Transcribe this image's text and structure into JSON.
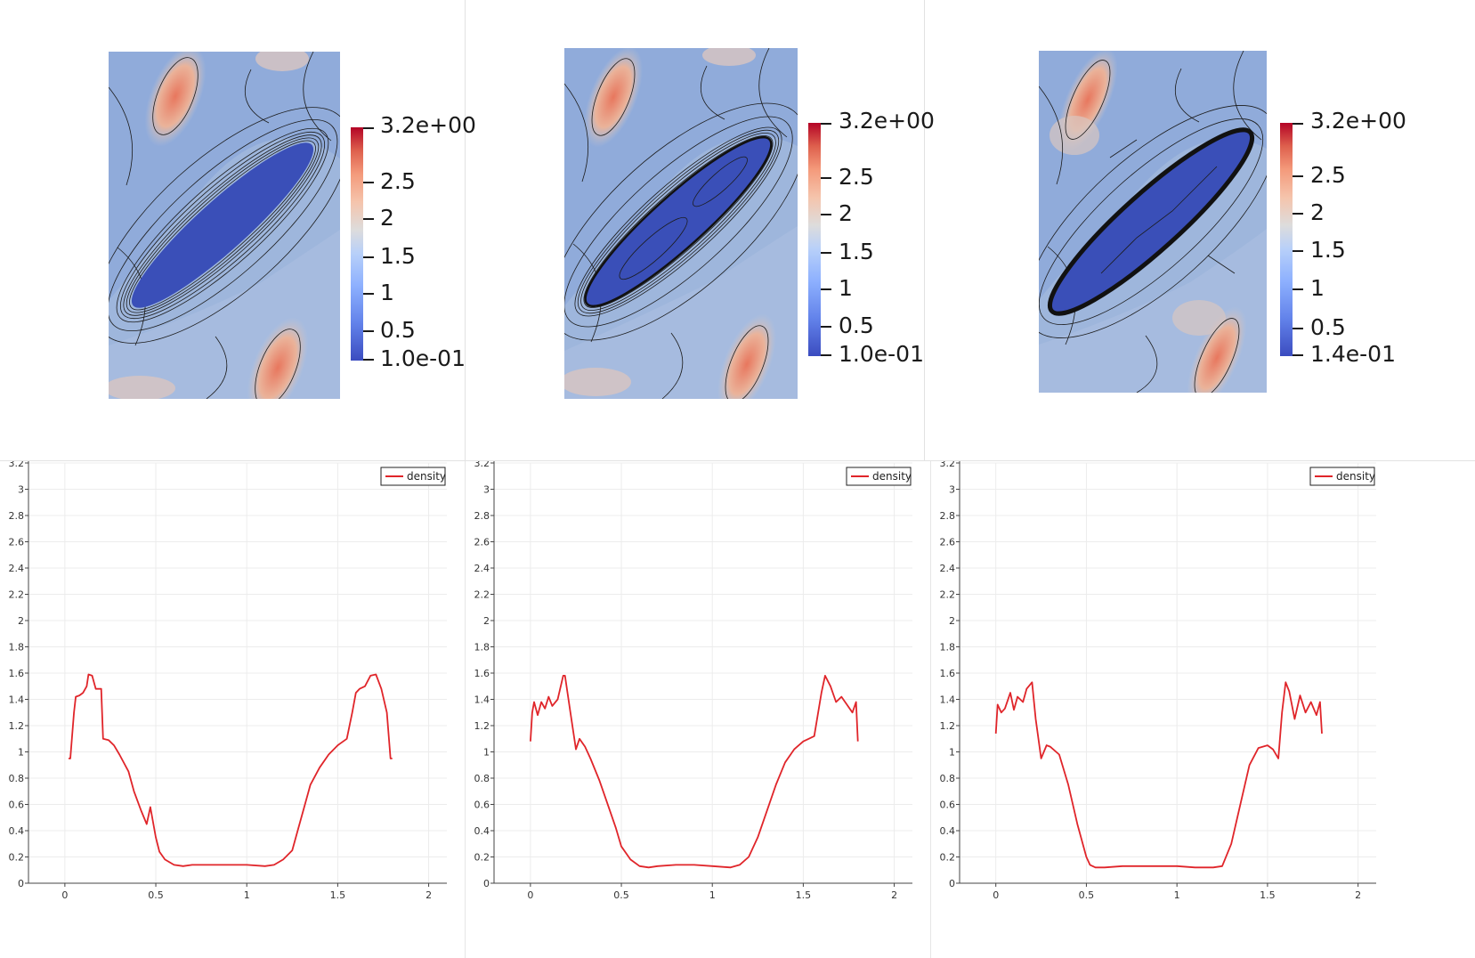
{
  "fields": [
    {
      "colorbar": {
        "top_label": "3.2e+00",
        "bottom_label": "1.0e-01",
        "ticks": [
          "2.5",
          "2",
          "1.5",
          "1",
          "0.5"
        ]
      }
    },
    {
      "colorbar": {
        "top_label": "3.2e+00",
        "bottom_label": "1.0e-01",
        "ticks": [
          "2.5",
          "2",
          "1.5",
          "1",
          "0.5"
        ]
      }
    },
    {
      "colorbar": {
        "top_label": "3.2e+00",
        "bottom_label": "1.4e-01",
        "ticks": [
          "2.5",
          "2",
          "1.5",
          "1",
          "0.5"
        ]
      }
    }
  ],
  "chart_data": [
    {
      "type": "line",
      "xlim": [
        -0.2,
        2.1
      ],
      "ylim": [
        0,
        3.2
      ],
      "xticks": [
        "0",
        "0.5",
        "1",
        "1.5",
        "2"
      ],
      "yticks": [
        "0",
        "0.2",
        "0.4",
        "0.6",
        "0.8",
        "1",
        "1.2",
        "1.4",
        "1.6",
        "1.8",
        "2",
        "2.2",
        "2.4",
        "2.6",
        "2.8",
        "3",
        "3.2"
      ],
      "grid": true,
      "legend": "top-right",
      "color": "#e0252a",
      "series": [
        {
          "name": "density",
          "x": [
            0.02,
            0.03,
            0.05,
            0.06,
            0.08,
            0.1,
            0.12,
            0.13,
            0.15,
            0.17,
            0.2,
            0.21,
            0.24,
            0.27,
            0.3,
            0.35,
            0.38,
            0.42,
            0.45,
            0.47,
            0.5,
            0.52,
            0.55,
            0.6,
            0.65,
            0.7,
            0.8,
            0.9,
            1.0,
            1.1,
            1.15,
            1.2,
            1.25,
            1.28,
            1.32,
            1.35,
            1.4,
            1.45,
            1.5,
            1.55,
            1.58,
            1.6,
            1.62,
            1.65,
            1.68,
            1.71,
            1.74,
            1.77,
            1.79,
            1.8
          ],
          "y": [
            0.95,
            0.95,
            1.3,
            1.42,
            1.43,
            1.45,
            1.5,
            1.59,
            1.58,
            1.48,
            1.48,
            1.1,
            1.09,
            1.05,
            0.98,
            0.85,
            0.7,
            0.55,
            0.45,
            0.58,
            0.35,
            0.24,
            0.18,
            0.14,
            0.13,
            0.14,
            0.14,
            0.14,
            0.14,
            0.13,
            0.14,
            0.18,
            0.25,
            0.4,
            0.6,
            0.75,
            0.88,
            0.98,
            1.05,
            1.1,
            1.3,
            1.45,
            1.48,
            1.5,
            1.58,
            1.59,
            1.48,
            1.3,
            0.95,
            0.95
          ]
        }
      ]
    },
    {
      "type": "line",
      "xlim": [
        -0.2,
        2.1
      ],
      "ylim": [
        0,
        3.2
      ],
      "xticks": [
        "0",
        "0.5",
        "1",
        "1.5",
        "2"
      ],
      "yticks": [
        "0",
        "0.2",
        "0.4",
        "0.6",
        "0.8",
        "1",
        "1.2",
        "1.4",
        "1.6",
        "1.8",
        "2",
        "2.2",
        "2.4",
        "2.6",
        "2.8",
        "3",
        "3.2"
      ],
      "grid": true,
      "legend": "top-right",
      "color": "#e0252a",
      "series": [
        {
          "name": "density",
          "x": [
            0.0,
            0.01,
            0.02,
            0.04,
            0.06,
            0.08,
            0.1,
            0.12,
            0.15,
            0.18,
            0.19,
            0.22,
            0.25,
            0.27,
            0.3,
            0.33,
            0.38,
            0.42,
            0.47,
            0.5,
            0.55,
            0.6,
            0.65,
            0.7,
            0.8,
            0.9,
            1.0,
            1.1,
            1.15,
            1.2,
            1.25,
            1.3,
            1.35,
            1.4,
            1.45,
            1.5,
            1.53,
            1.56,
            1.6,
            1.62,
            1.65,
            1.68,
            1.71,
            1.74,
            1.77,
            1.79,
            1.8
          ],
          "y": [
            1.08,
            1.3,
            1.38,
            1.28,
            1.38,
            1.33,
            1.42,
            1.35,
            1.4,
            1.58,
            1.58,
            1.3,
            1.02,
            1.1,
            1.04,
            0.95,
            0.78,
            0.62,
            0.42,
            0.28,
            0.18,
            0.13,
            0.12,
            0.13,
            0.14,
            0.14,
            0.13,
            0.12,
            0.14,
            0.2,
            0.35,
            0.55,
            0.75,
            0.92,
            1.02,
            1.08,
            1.1,
            1.12,
            1.45,
            1.58,
            1.5,
            1.38,
            1.42,
            1.36,
            1.3,
            1.38,
            1.08
          ]
        }
      ]
    },
    {
      "type": "line",
      "xlim": [
        -0.2,
        2.1
      ],
      "ylim": [
        0,
        3.2
      ],
      "xticks": [
        "0",
        "0.5",
        "1",
        "1.5",
        "2"
      ],
      "yticks": [
        "0",
        "0.2",
        "0.4",
        "0.6",
        "0.8",
        "1",
        "1.2",
        "1.4",
        "1.6",
        "1.8",
        "2",
        "2.2",
        "2.4",
        "2.6",
        "2.8",
        "3",
        "3.2"
      ],
      "grid": true,
      "legend": "top-right",
      "color": "#e0252a",
      "series": [
        {
          "name": "density",
          "x": [
            0.0,
            0.01,
            0.03,
            0.05,
            0.08,
            0.1,
            0.12,
            0.15,
            0.17,
            0.2,
            0.22,
            0.25,
            0.28,
            0.3,
            0.35,
            0.4,
            0.45,
            0.5,
            0.52,
            0.55,
            0.6,
            0.7,
            0.8,
            0.9,
            1.0,
            1.1,
            1.2,
            1.25,
            1.3,
            1.35,
            1.4,
            1.45,
            1.5,
            1.53,
            1.56,
            1.58,
            1.6,
            1.62,
            1.65,
            1.68,
            1.71,
            1.74,
            1.77,
            1.79,
            1.8
          ],
          "y": [
            1.14,
            1.36,
            1.3,
            1.33,
            1.45,
            1.32,
            1.42,
            1.38,
            1.48,
            1.53,
            1.25,
            0.95,
            1.05,
            1.04,
            0.98,
            0.75,
            0.45,
            0.2,
            0.14,
            0.12,
            0.12,
            0.13,
            0.13,
            0.13,
            0.13,
            0.12,
            0.12,
            0.13,
            0.3,
            0.6,
            0.9,
            1.03,
            1.05,
            1.02,
            0.95,
            1.3,
            1.53,
            1.46,
            1.25,
            1.43,
            1.3,
            1.38,
            1.28,
            1.38,
            1.14
          ]
        }
      ]
    }
  ]
}
